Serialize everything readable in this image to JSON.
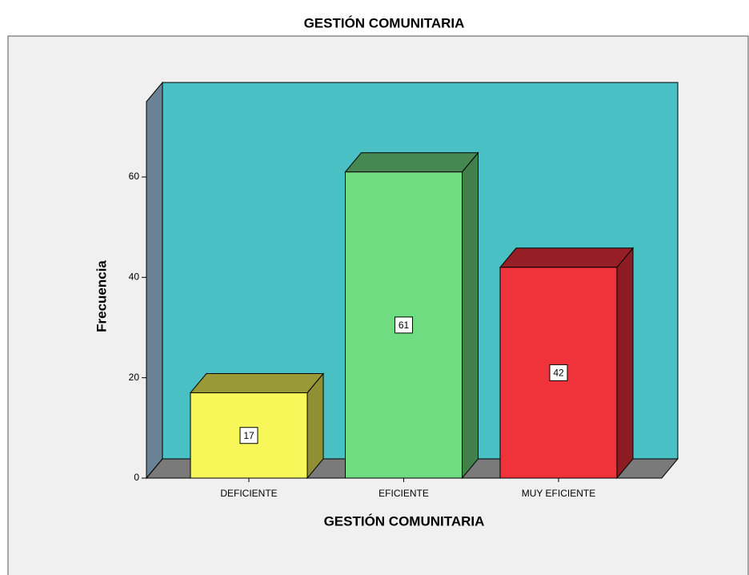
{
  "chart_data": {
    "type": "bar3d",
    "title": "GESTIÓN COMUNITARIA",
    "x_label": "GESTIÓN COMUNITARIA",
    "y_label": "Frecuencia",
    "categories": [
      "DEFICIENTE",
      "EFICIENTE",
      "MUY EFICIENTE"
    ],
    "values": [
      17,
      61,
      42
    ],
    "colors": [
      "#f7f75a",
      "#70dc82",
      "#f0323a"
    ],
    "ylim": [
      0,
      75
    ],
    "yticks": [
      0,
      20,
      40,
      60
    ]
  }
}
